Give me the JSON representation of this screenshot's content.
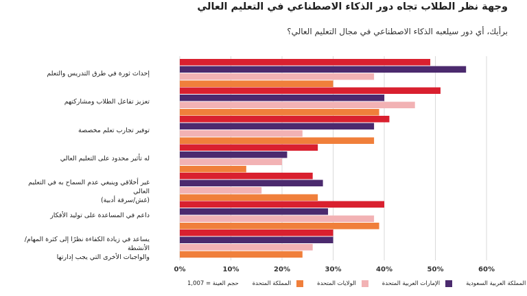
{
  "title": "وجهة نظر الطلاب تجاه دور الذكاء الاصطناعي في التعليم العالي",
  "subtitle": "برأيك، أي دور سيلعبه الذكاء الاصطناعي في مجال التعليم العالي؟",
  "sample_note": "حجم العينة = 1,007",
  "colors": {
    "saudi": "#d9202f",
    "uae": "#4b2a6e",
    "usa": "#f2b2b4",
    "uk": "#f07f3b",
    "grid": "#d9d9d9"
  },
  "chart_data": {
    "type": "bar",
    "orientation": "horizontal",
    "categories": [
      "إحداث ثورة في طرق التدريس والتعلم",
      "تعزيز تفاعل الطلاب ومشاركتهم",
      "توفير تجارب تعلم مخصصة",
      "له تأثير محدود على التعليم العالي",
      "غير أخلاقي وينبغي عدم السماح به في التعليم العالي\n(غش/سرقة أدبية)",
      "داعم في المساعدة على توليد الأفكار",
      "يساعد في زيادة الكفاءة نظرًا إلى كثرة المهام/الأنشطة\nوالواجبات الأخرى التي يجب إدارتها"
    ],
    "series": [
      {
        "name": "المملكة العربية السعودية",
        "color_key": "saudi",
        "values": [
          49,
          51,
          41,
          27,
          26,
          40,
          30
        ]
      },
      {
        "name": "الإمارات العربية المتحدة",
        "color_key": "uae",
        "values": [
          56,
          40,
          38,
          21,
          28,
          29,
          30
        ]
      },
      {
        "name": "الولايات المتحدة",
        "color_key": "usa",
        "values": [
          38,
          46,
          24,
          20,
          16,
          38,
          26
        ]
      },
      {
        "name": "المملكة المتحدة",
        "color_key": "uk",
        "values": [
          30,
          39,
          38,
          13,
          27,
          39,
          24
        ]
      }
    ],
    "xlim": [
      0,
      60
    ],
    "xticks": [
      "0%",
      "10%",
      "20%",
      "30%",
      "40%",
      "50%",
      "60%"
    ],
    "grid": true,
    "legend_position": "bottom"
  }
}
